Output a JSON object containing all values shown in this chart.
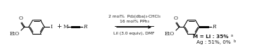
{
  "figsize": [
    3.92,
    0.78
  ],
  "dpi": 100,
  "bg_color": "#ffffff",
  "reagents_line1": "2 mol%  Pd₂(dba)₃·CHCl₃",
  "reagents_line2": "16 mol% PPh₃",
  "reagents_line3": "LiI (3.0 equiv), DMF",
  "text_color": "#1a1a1a",
  "fs": 5.2,
  "fs_annot": 4.3,
  "fs_super": 3.5
}
